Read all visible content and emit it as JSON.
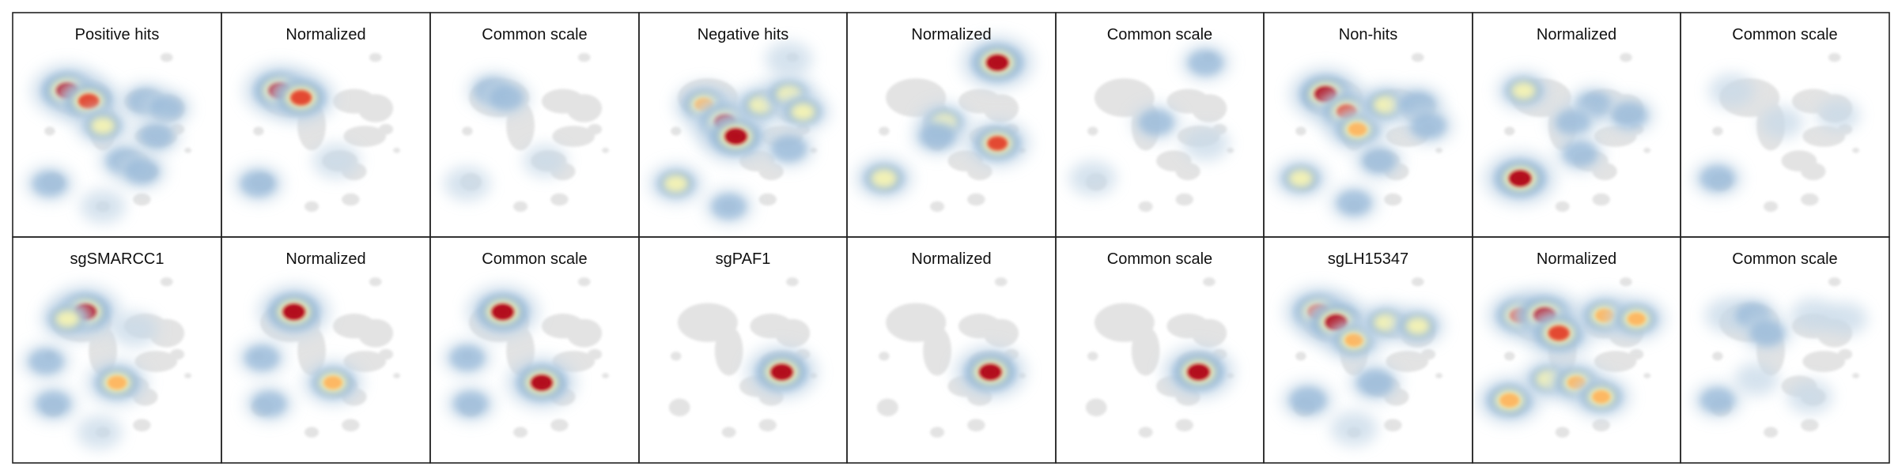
{
  "chart_data": {
    "type": "heatmap",
    "rows": 2,
    "columns": 9,
    "panels": [
      {
        "title": "Positive hits",
        "scale": "raw",
        "hotspots": [
          {
            "x": 0.22,
            "y": 0.22,
            "intensity": 1.0
          },
          {
            "x": 0.34,
            "y": 0.28,
            "intensity": 0.85
          },
          {
            "x": 0.42,
            "y": 0.42,
            "intensity": 0.45
          },
          {
            "x": 0.66,
            "y": 0.28,
            "intensity": 0.35
          },
          {
            "x": 0.78,
            "y": 0.32,
            "intensity": 0.3
          },
          {
            "x": 0.72,
            "y": 0.48,
            "intensity": 0.3
          },
          {
            "x": 0.54,
            "y": 0.62,
            "intensity": 0.35
          },
          {
            "x": 0.64,
            "y": 0.68,
            "intensity": 0.3
          },
          {
            "x": 0.12,
            "y": 0.75,
            "intensity": 0.3
          },
          {
            "x": 0.42,
            "y": 0.88,
            "intensity": 0.2
          }
        ]
      },
      {
        "title": "Normalized",
        "scale": "normalized",
        "hotspots": [
          {
            "x": 0.24,
            "y": 0.22,
            "intensity": 1.0
          },
          {
            "x": 0.36,
            "y": 0.26,
            "intensity": 0.9
          },
          {
            "x": 0.12,
            "y": 0.75,
            "intensity": 0.35
          },
          {
            "x": 0.56,
            "y": 0.62,
            "intensity": 0.25
          }
        ]
      },
      {
        "title": "Common scale",
        "scale": "common",
        "hotspots": [
          {
            "x": 0.26,
            "y": 0.22,
            "intensity": 0.35
          },
          {
            "x": 0.34,
            "y": 0.26,
            "intensity": 0.3
          },
          {
            "x": 0.12,
            "y": 0.75,
            "intensity": 0.22
          },
          {
            "x": 0.56,
            "y": 0.62,
            "intensity": 0.15
          }
        ]
      },
      {
        "title": "Negative hits",
        "scale": "raw",
        "hotspots": [
          {
            "x": 0.28,
            "y": 0.3,
            "intensity": 0.65
          },
          {
            "x": 0.4,
            "y": 0.4,
            "intensity": 0.95
          },
          {
            "x": 0.46,
            "y": 0.48,
            "intensity": 1.0
          },
          {
            "x": 0.6,
            "y": 0.3,
            "intensity": 0.45
          },
          {
            "x": 0.76,
            "y": 0.24,
            "intensity": 0.5
          },
          {
            "x": 0.84,
            "y": 0.34,
            "intensity": 0.45
          },
          {
            "x": 0.76,
            "y": 0.55,
            "intensity": 0.35
          },
          {
            "x": 0.12,
            "y": 0.75,
            "intensity": 0.45
          },
          {
            "x": 0.42,
            "y": 0.88,
            "intensity": 0.3
          },
          {
            "x": 0.76,
            "y": 0.04,
            "intensity": 0.25
          }
        ]
      },
      {
        "title": "Normalized",
        "scale": "normalized",
        "hotspots": [
          {
            "x": 0.76,
            "y": 0.06,
            "intensity": 1.0
          },
          {
            "x": 0.76,
            "y": 0.52,
            "intensity": 0.8
          },
          {
            "x": 0.46,
            "y": 0.4,
            "intensity": 0.45
          },
          {
            "x": 0.42,
            "y": 0.48,
            "intensity": 0.35
          },
          {
            "x": 0.12,
            "y": 0.72,
            "intensity": 0.55
          }
        ]
      },
      {
        "title": "Common scale",
        "scale": "common",
        "hotspots": [
          {
            "x": 0.76,
            "y": 0.06,
            "intensity": 0.32
          },
          {
            "x": 0.76,
            "y": 0.52,
            "intensity": 0.25
          },
          {
            "x": 0.48,
            "y": 0.4,
            "intensity": 0.32
          },
          {
            "x": 0.12,
            "y": 0.72,
            "intensity": 0.25
          }
        ]
      },
      {
        "title": "Non-hits",
        "scale": "raw",
        "hotspots": [
          {
            "x": 0.26,
            "y": 0.24,
            "intensity": 1.0
          },
          {
            "x": 0.38,
            "y": 0.34,
            "intensity": 0.8
          },
          {
            "x": 0.44,
            "y": 0.44,
            "intensity": 0.65
          },
          {
            "x": 0.6,
            "y": 0.3,
            "intensity": 0.5
          },
          {
            "x": 0.78,
            "y": 0.3,
            "intensity": 0.4
          },
          {
            "x": 0.84,
            "y": 0.42,
            "intensity": 0.35
          },
          {
            "x": 0.56,
            "y": 0.62,
            "intensity": 0.3
          },
          {
            "x": 0.12,
            "y": 0.72,
            "intensity": 0.45
          },
          {
            "x": 0.42,
            "y": 0.86,
            "intensity": 0.3
          }
        ]
      },
      {
        "title": "Normalized",
        "scale": "normalized",
        "hotspots": [
          {
            "x": 0.18,
            "y": 0.72,
            "intensity": 1.0
          },
          {
            "x": 0.2,
            "y": 0.22,
            "intensity": 0.45
          },
          {
            "x": 0.6,
            "y": 0.3,
            "intensity": 0.35
          },
          {
            "x": 0.8,
            "y": 0.36,
            "intensity": 0.35
          },
          {
            "x": 0.48,
            "y": 0.4,
            "intensity": 0.3
          },
          {
            "x": 0.52,
            "y": 0.58,
            "intensity": 0.3
          }
        ]
      },
      {
        "title": "Common scale",
        "scale": "common",
        "hotspots": [
          {
            "x": 0.12,
            "y": 0.72,
            "intensity": 0.32
          },
          {
            "x": 0.2,
            "y": 0.22,
            "intensity": 0.22
          },
          {
            "x": 0.48,
            "y": 0.4,
            "intensity": 0.15
          },
          {
            "x": 0.8,
            "y": 0.36,
            "intensity": 0.15
          }
        ]
      },
      {
        "title": "sgSMARCC1",
        "scale": "raw",
        "hotspots": [
          {
            "x": 0.32,
            "y": 0.2,
            "intensity": 1.0
          },
          {
            "x": 0.22,
            "y": 0.24,
            "intensity": 0.45
          },
          {
            "x": 0.5,
            "y": 0.6,
            "intensity": 0.7
          },
          {
            "x": 0.1,
            "y": 0.48,
            "intensity": 0.3
          },
          {
            "x": 0.14,
            "y": 0.72,
            "intensity": 0.3
          },
          {
            "x": 0.6,
            "y": 0.3,
            "intensity": 0.25
          },
          {
            "x": 0.4,
            "y": 0.88,
            "intensity": 0.2
          }
        ]
      },
      {
        "title": "Normalized",
        "scale": "normalized",
        "hotspots": [
          {
            "x": 0.32,
            "y": 0.2,
            "intensity": 1.0
          },
          {
            "x": 0.54,
            "y": 0.6,
            "intensity": 0.65
          },
          {
            "x": 0.14,
            "y": 0.46,
            "intensity": 0.3
          },
          {
            "x": 0.18,
            "y": 0.72,
            "intensity": 0.3
          }
        ]
      },
      {
        "title": "Common scale",
        "scale": "common",
        "hotspots": [
          {
            "x": 0.32,
            "y": 0.2,
            "intensity": 1.0
          },
          {
            "x": 0.54,
            "y": 0.6,
            "intensity": 0.95
          },
          {
            "x": 0.12,
            "y": 0.46,
            "intensity": 0.3
          },
          {
            "x": 0.14,
            "y": 0.72,
            "intensity": 0.3
          }
        ]
      },
      {
        "title": "sgPAF1",
        "scale": "raw",
        "hotspots": [
          {
            "x": 0.72,
            "y": 0.54,
            "intensity": 1.0
          }
        ]
      },
      {
        "title": "Normalized",
        "scale": "normalized",
        "hotspots": [
          {
            "x": 0.72,
            "y": 0.54,
            "intensity": 1.0
          }
        ]
      },
      {
        "title": "Common scale",
        "scale": "common",
        "hotspots": [
          {
            "x": 0.72,
            "y": 0.54,
            "intensity": 1.0
          }
        ]
      },
      {
        "title": "sgLH15347",
        "scale": "raw",
        "hotspots": [
          {
            "x": 0.22,
            "y": 0.2,
            "intensity": 0.9
          },
          {
            "x": 0.32,
            "y": 0.26,
            "intensity": 1.0
          },
          {
            "x": 0.42,
            "y": 0.36,
            "intensity": 0.6
          },
          {
            "x": 0.6,
            "y": 0.26,
            "intensity": 0.45
          },
          {
            "x": 0.78,
            "y": 0.28,
            "intensity": 0.45
          },
          {
            "x": 0.54,
            "y": 0.6,
            "intensity": 0.4
          },
          {
            "x": 0.16,
            "y": 0.7,
            "intensity": 0.4
          },
          {
            "x": 0.42,
            "y": 0.86,
            "intensity": 0.25
          }
        ]
      },
      {
        "title": "Normalized",
        "scale": "normalized",
        "hotspots": [
          {
            "x": 0.18,
            "y": 0.22,
            "intensity": 0.8
          },
          {
            "x": 0.32,
            "y": 0.22,
            "intensity": 1.0
          },
          {
            "x": 0.4,
            "y": 0.32,
            "intensity": 0.9
          },
          {
            "x": 0.66,
            "y": 0.22,
            "intensity": 0.65
          },
          {
            "x": 0.84,
            "y": 0.24,
            "intensity": 0.6
          },
          {
            "x": 0.12,
            "y": 0.7,
            "intensity": 0.75
          },
          {
            "x": 0.34,
            "y": 0.58,
            "intensity": 0.45
          },
          {
            "x": 0.5,
            "y": 0.6,
            "intensity": 0.6
          },
          {
            "x": 0.64,
            "y": 0.68,
            "intensity": 0.6
          }
        ]
      },
      {
        "title": "Common scale",
        "scale": "common",
        "hotspots": [
          {
            "x": 0.18,
            "y": 0.22,
            "intensity": 0.25
          },
          {
            "x": 0.32,
            "y": 0.22,
            "intensity": 0.32
          },
          {
            "x": 0.4,
            "y": 0.32,
            "intensity": 0.32
          },
          {
            "x": 0.66,
            "y": 0.22,
            "intensity": 0.22
          },
          {
            "x": 0.84,
            "y": 0.24,
            "intensity": 0.18
          },
          {
            "x": 0.12,
            "y": 0.7,
            "intensity": 0.3
          },
          {
            "x": 0.34,
            "y": 0.58,
            "intensity": 0.18
          },
          {
            "x": 0.64,
            "y": 0.68,
            "intensity": 0.2
          }
        ]
      }
    ],
    "colors": {
      "background_shape": "#e3e3e3",
      "scale_low": "#c7d9e8",
      "scale_mid_low": "#8fb3d6",
      "scale_mid": "#f7f4b4",
      "scale_mid_high": "#fdb863",
      "scale_high": "#e34a33",
      "scale_max": "#b30d1e",
      "panel_border": "#222222"
    }
  }
}
